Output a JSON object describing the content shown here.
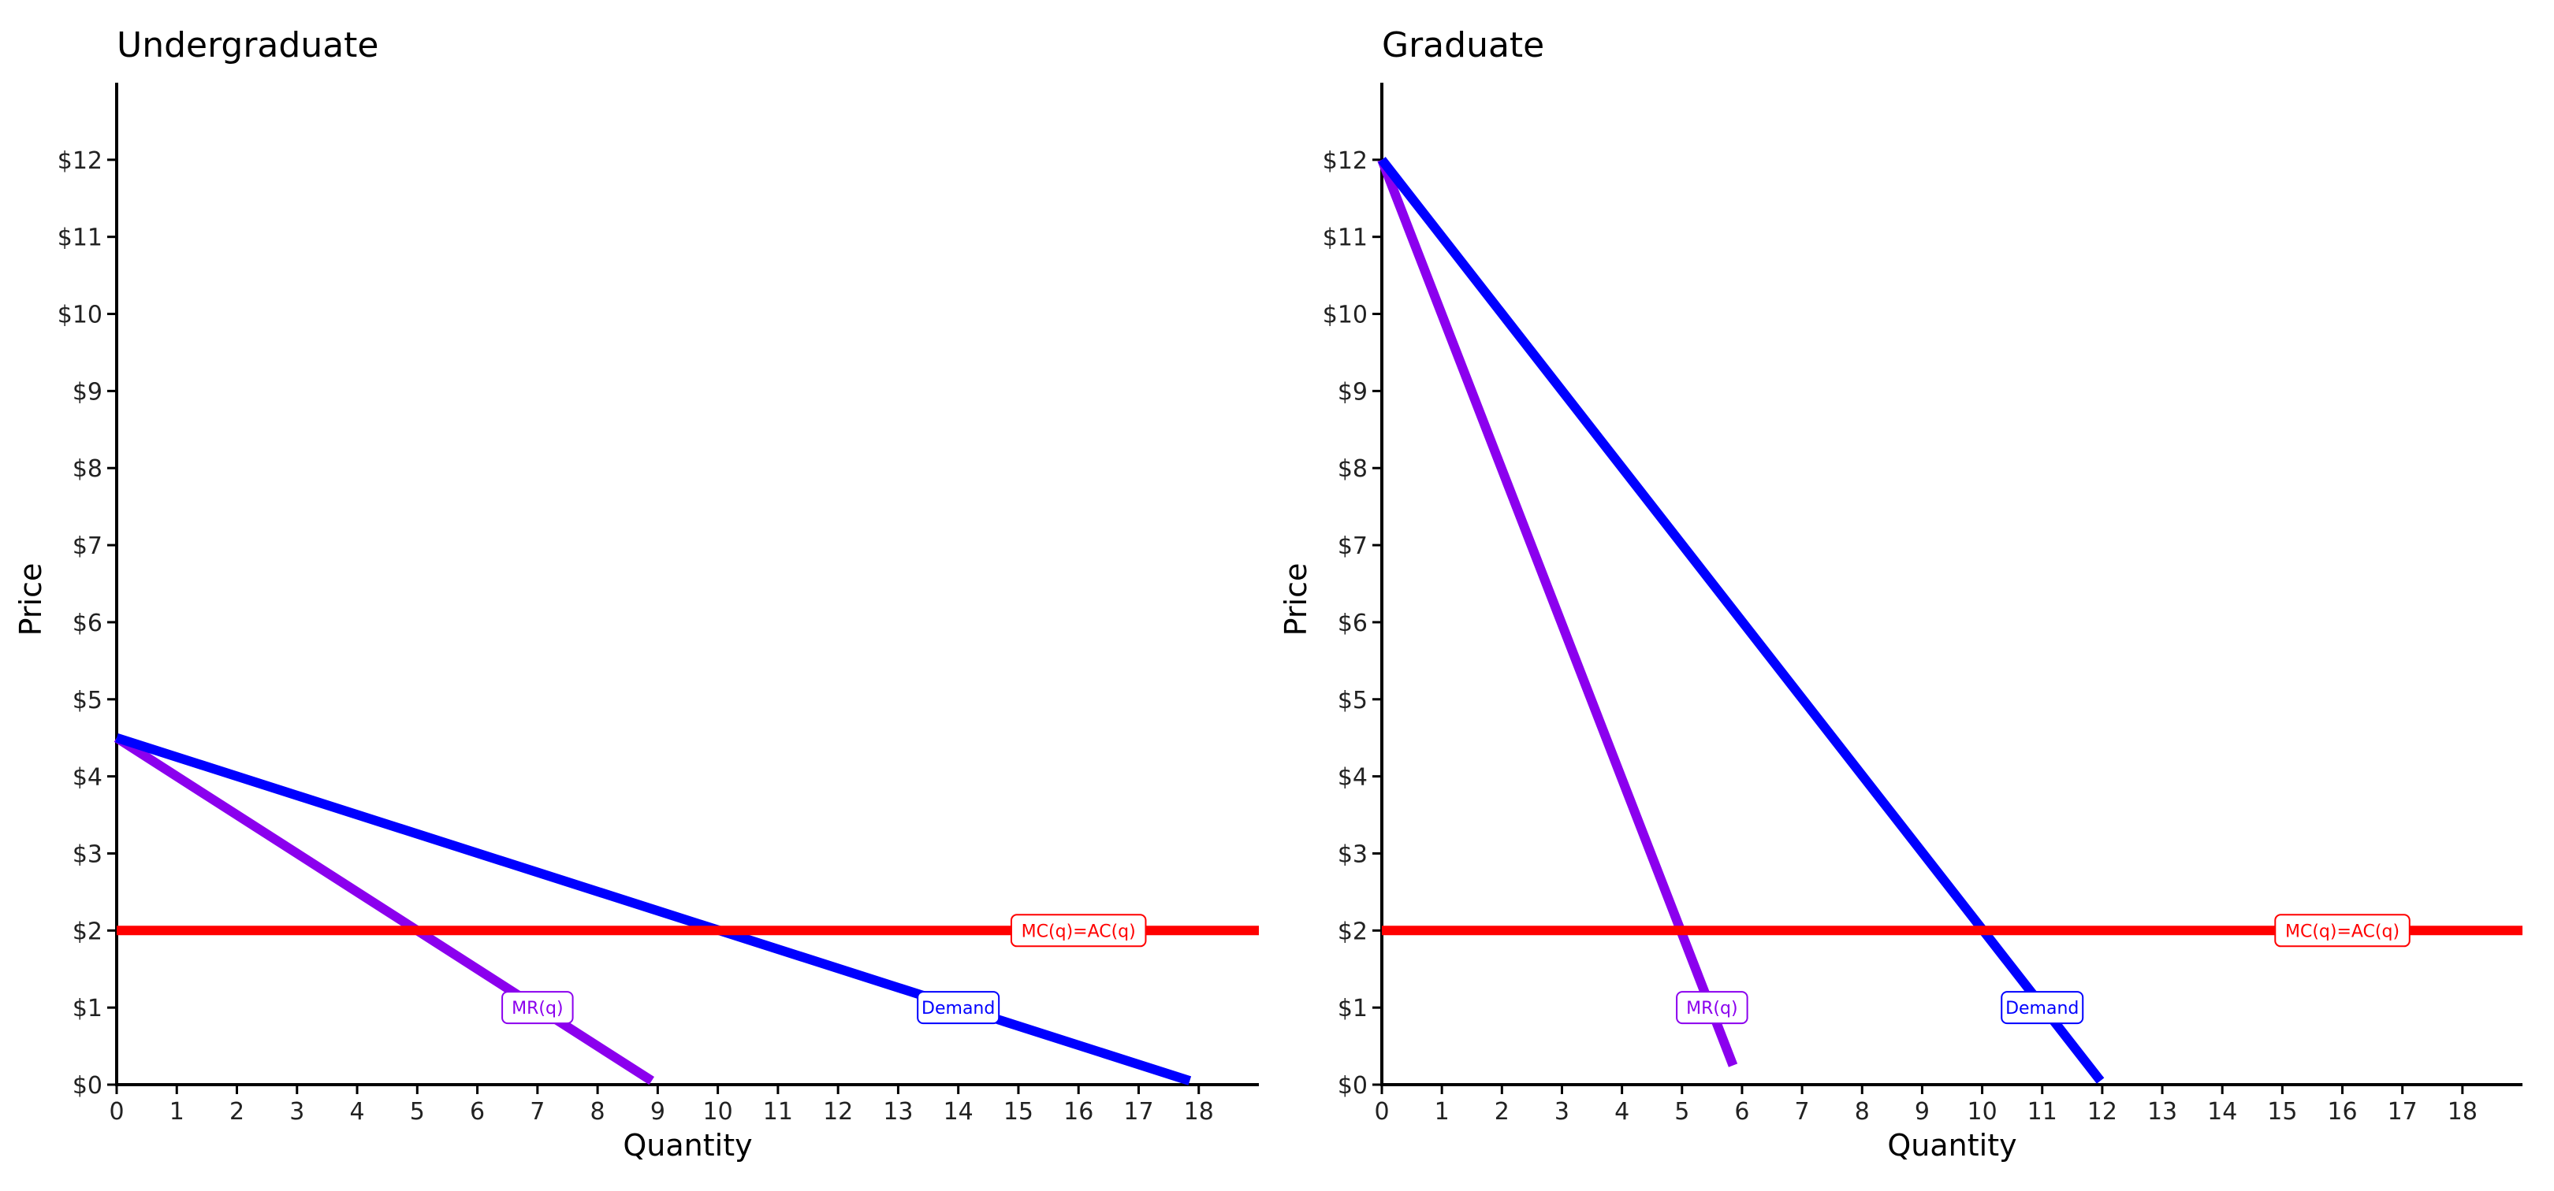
{
  "colors": {
    "demand": "#0000ff",
    "mr": "#8b00ee",
    "mc": "#ff0000",
    "axis": "#000000",
    "background": "#ffffff"
  },
  "chart_data": [
    {
      "type": "line",
      "title": "Undergraduate",
      "xlabel": "Quantity",
      "ylabel": "Price",
      "xlim": [
        0,
        19
      ],
      "ylim": [
        0,
        13
      ],
      "x_ticks": [
        0,
        1,
        2,
        3,
        4,
        5,
        6,
        7,
        8,
        9,
        10,
        11,
        12,
        13,
        14,
        15,
        16,
        17,
        18
      ],
      "y_ticks": [
        0,
        1,
        2,
        3,
        4,
        5,
        6,
        7,
        8,
        9,
        10,
        11,
        12
      ],
      "y_tick_labels": [
        "$0",
        "$1",
        "$2",
        "$3",
        "$4",
        "$5",
        "$6",
        "$7",
        "$8",
        "$9",
        "$10",
        "$11",
        "$12"
      ],
      "grid": false,
      "series": [
        {
          "name": "Demand",
          "color": "#0000ff",
          "x": [
            0,
            17.85
          ],
          "y": [
            4.5,
            0.05
          ],
          "label_at": [
            14,
            1
          ]
        },
        {
          "name": "MR(q)",
          "color": "#8b00ee",
          "x": [
            0,
            8.9
          ],
          "y": [
            4.5,
            0.05
          ],
          "label_at": [
            7,
            1
          ]
        },
        {
          "name": "MC(q)=AC(q)",
          "color": "#ff0000",
          "x": [
            0,
            19
          ],
          "y": [
            2,
            2
          ],
          "label_at": [
            16,
            2
          ]
        }
      ]
    },
    {
      "type": "line",
      "title": "Graduate",
      "xlabel": "Quantity",
      "ylabel": "Price",
      "xlim": [
        0,
        19
      ],
      "ylim": [
        0,
        13
      ],
      "x_ticks": [
        0,
        1,
        2,
        3,
        4,
        5,
        6,
        7,
        8,
        9,
        10,
        11,
        12,
        13,
        14,
        15,
        16,
        17,
        18
      ],
      "y_ticks": [
        0,
        1,
        2,
        3,
        4,
        5,
        6,
        7,
        8,
        9,
        10,
        11,
        12
      ],
      "y_tick_labels": [
        "$0",
        "$1",
        "$2",
        "$3",
        "$4",
        "$5",
        "$6",
        "$7",
        "$8",
        "$9",
        "$10",
        "$11",
        "$12"
      ],
      "grid": false,
      "series": [
        {
          "name": "Demand",
          "color": "#0000ff",
          "x": [
            0,
            11.97
          ],
          "y": [
            12,
            0.05
          ],
          "label_at": [
            11,
            1
          ]
        },
        {
          "name": "MR(q)",
          "color": "#8b00ee",
          "x": [
            0,
            5.85
          ],
          "y": [
            12,
            0.25
          ],
          "label_at": [
            5.5,
            1
          ]
        },
        {
          "name": "MC(q)=AC(q)",
          "color": "#ff0000",
          "x": [
            0,
            19
          ],
          "y": [
            2,
            2
          ],
          "label_at": [
            16,
            2
          ]
        }
      ]
    }
  ]
}
